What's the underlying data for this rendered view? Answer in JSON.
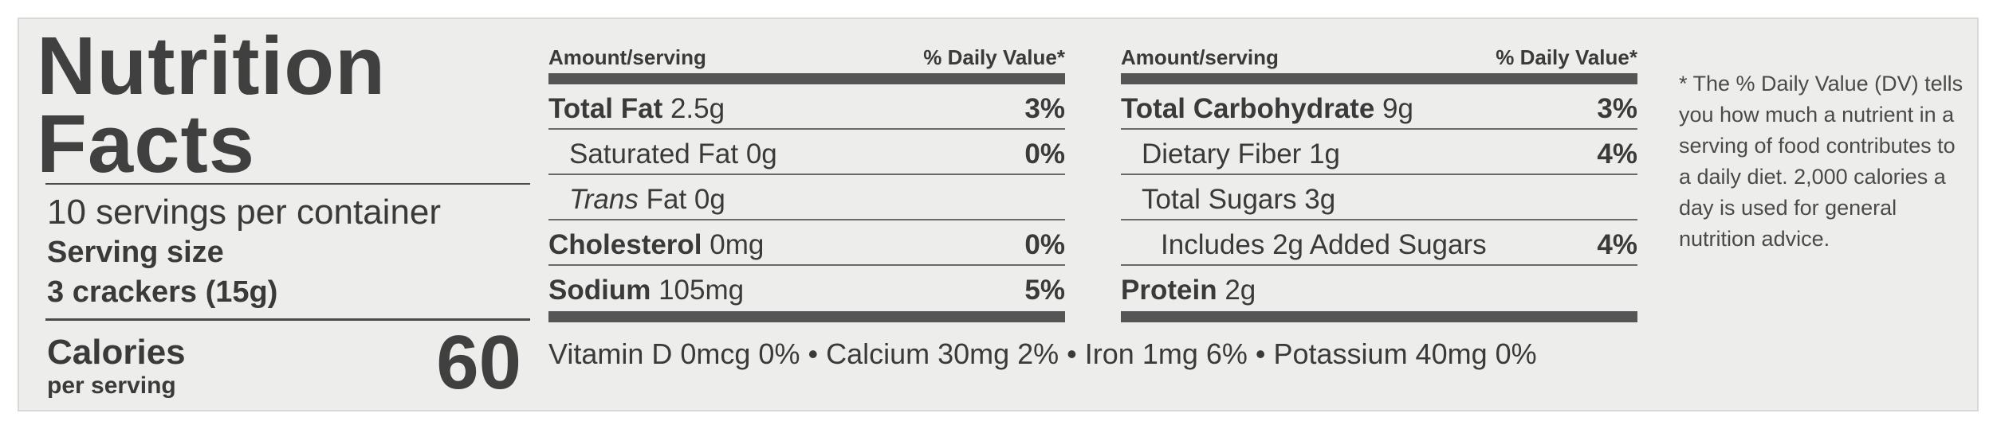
{
  "title": "Nutrition Facts",
  "servings_per_container": "10 servings per container",
  "serving_size_label": "Serving size",
  "serving_size_value": "3 crackers (15g)",
  "calories_label": "Calories",
  "calories_sublabel": "per serving",
  "calories_value": "60",
  "header_amount": "Amount/serving",
  "header_dv": "% Daily Value*",
  "left_table": [
    {
      "name": "Total Fat",
      "amount": "2.5g",
      "dv": "3%",
      "bold": true
    },
    {
      "name": "Saturated Fat",
      "amount": "0g",
      "dv": "0%",
      "bold": false
    },
    {
      "name": "Trans",
      "amount": "Fat 0g",
      "dv": "",
      "bold": false
    },
    {
      "name": "Cholesterol",
      "amount": "0mg",
      "dv": "0%",
      "bold": true
    },
    {
      "name": "Sodium",
      "amount": "105mg",
      "dv": "5%",
      "bold": true
    }
  ],
  "right_table": [
    {
      "name": "Total Carbohydrate",
      "amount": "9g",
      "dv": "3%",
      "bold": true
    },
    {
      "name": "Dietary Fiber",
      "amount": "1g",
      "dv": "4%",
      "bold": false
    },
    {
      "name": "Total Sugars",
      "amount": "3g",
      "dv": "",
      "bold": false
    },
    {
      "name": "Includes 2g Added Sugars",
      "amount": "",
      "dv": "4%",
      "bold": false
    },
    {
      "name": "Protein",
      "amount": "2g",
      "dv": "",
      "bold": true
    }
  ],
  "vitamins": "Vitamin D 0mcg 0% • Calcium 30mg 2% • Iron 1mg 6% • Potassium 40mg 0%",
  "footnote": "* The % Daily Value (DV) tells you how much a nutrient in a serving of food contributes to a daily diet.  2,000 calories a day is used for general nutrition advice."
}
